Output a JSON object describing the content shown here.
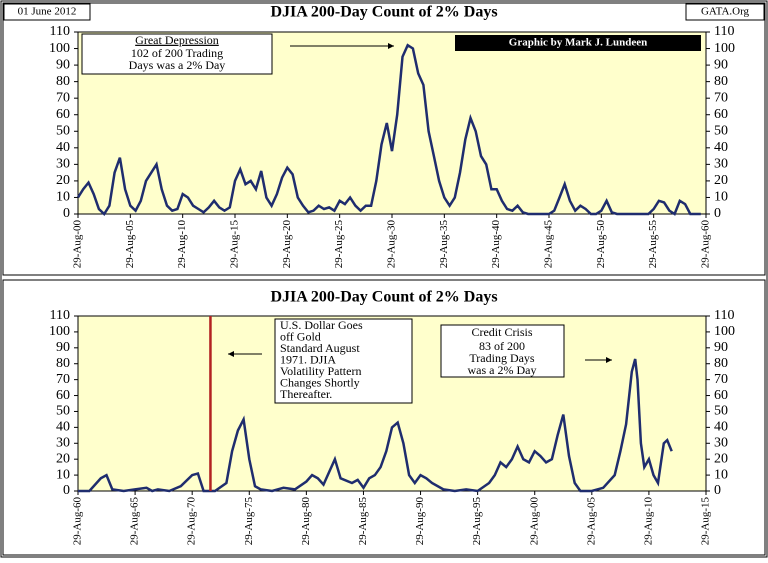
{
  "header": {
    "date": "01 June 2012",
    "site": "GATA.Org"
  },
  "chart_data": [
    {
      "type": "line",
      "title": "DJIA 200-Day Count of 2% Days",
      "color": "#1f2d6e",
      "credit": "Graphic by Mark J. Lundeen",
      "note_heading": "Great Depression",
      "note_lines": [
        "102 of 200 Trading",
        "Days was a 2% Day"
      ],
      "xlim": [
        1900,
        1960
      ],
      "xticks": [
        {
          "value": 1900,
          "label": "29-Aug-00"
        },
        {
          "value": 1905,
          "label": "29-Aug-05"
        },
        {
          "value": 1910,
          "label": "29-Aug-10"
        },
        {
          "value": 1915,
          "label": "29-Aug-15"
        },
        {
          "value": 1920,
          "label": "29-Aug-20"
        },
        {
          "value": 1925,
          "label": "29-Aug-25"
        },
        {
          "value": 1930,
          "label": "29-Aug-30"
        },
        {
          "value": 1935,
          "label": "29-Aug-35"
        },
        {
          "value": 1940,
          "label": "29-Aug-40"
        },
        {
          "value": 1945,
          "label": "29-Aug-45"
        },
        {
          "value": 1950,
          "label": "29-Aug-50"
        },
        {
          "value": 1955,
          "label": "29-Aug-55"
        },
        {
          "value": 1960,
          "label": "29-Aug-60"
        }
      ],
      "ylim": [
        0,
        110
      ],
      "yticks": [
        0,
        10,
        20,
        30,
        40,
        50,
        60,
        70,
        80,
        90,
        100,
        110
      ],
      "x": [
        1900,
        1900.5,
        1901,
        1901.5,
        1902,
        1902.5,
        1903,
        1903.5,
        1904,
        1904.5,
        1905,
        1905.5,
        1906,
        1906.5,
        1907,
        1907.5,
        1908,
        1908.5,
        1909,
        1909.5,
        1910,
        1910.5,
        1911,
        1911.5,
        1912,
        1912.5,
        1913,
        1913.5,
        1914,
        1914.5,
        1915,
        1915.5,
        1916,
        1916.5,
        1917,
        1917.5,
        1918,
        1918.5,
        1919,
        1919.5,
        1920,
        1920.5,
        1921,
        1921.5,
        1922,
        1922.5,
        1923,
        1923.5,
        1924,
        1924.5,
        1925,
        1925.5,
        1926,
        1926.5,
        1927,
        1927.5,
        1928,
        1928.5,
        1929,
        1929.5,
        1930,
        1930.5,
        1931,
        1931.5,
        1932,
        1932.5,
        1933,
        1933.5,
        1934,
        1934.5,
        1935,
        1935.5,
        1936,
        1936.5,
        1937,
        1937.5,
        1938,
        1938.5,
        1939,
        1939.5,
        1940,
        1940.5,
        1941,
        1941.5,
        1942,
        1942.5,
        1943,
        1943.5,
        1944,
        1944.5,
        1945,
        1945.5,
        1946,
        1946.5,
        1947,
        1947.5,
        1948,
        1948.5,
        1949,
        1949.5,
        1950,
        1950.5,
        1951,
        1951.5,
        1952,
        1952.5,
        1953,
        1953.5,
        1954,
        1954.5,
        1955,
        1955.5,
        1956,
        1956.5,
        1957,
        1957.5,
        1958,
        1958.5,
        1959,
        1959.5
      ],
      "values": [
        10,
        15,
        19,
        12,
        3,
        0,
        5,
        25,
        34,
        15,
        5,
        2,
        8,
        20,
        25,
        30,
        15,
        5,
        2,
        3,
        12,
        10,
        5,
        3,
        1,
        4,
        8,
        4,
        2,
        4,
        20,
        27,
        18,
        20,
        15,
        26,
        10,
        5,
        12,
        22,
        28,
        24,
        10,
        5,
        1,
        2,
        5,
        3,
        4,
        2,
        8,
        6,
        10,
        5,
        2,
        5,
        5,
        20,
        42,
        55,
        38,
        60,
        95,
        102,
        100,
        85,
        78,
        50,
        35,
        20,
        10,
        5,
        10,
        25,
        45,
        58,
        50,
        35,
        30,
        15,
        15,
        8,
        3,
        2,
        5,
        1,
        0,
        0,
        0,
        0,
        0,
        2,
        10,
        18,
        8,
        2,
        5,
        3,
        0,
        0,
        2,
        8,
        1,
        0,
        0,
        0,
        0,
        0,
        0,
        0,
        3,
        8,
        7,
        2,
        0,
        8,
        6,
        0,
        0,
        0
      ]
    },
    {
      "type": "line",
      "title": "DJIA 200-Day Count of 2% Days",
      "color": "#1f2d6e",
      "event_x": 1971.6,
      "event_color": "#b22222",
      "dollar_lines": [
        "U.S. Dollar Goes",
        "off Gold",
        "Standard August",
        "1971.  DJIA",
        "Volatility Pattern",
        "Changes Shortly",
        "Thereafter."
      ],
      "crisis_heading": "Credit Crisis",
      "crisis_lines": [
        "83 of 200",
        "Trading Days",
        "was a 2% Day"
      ],
      "xlim": [
        1960,
        2015
      ],
      "xticks": [
        {
          "value": 1960,
          "label": "29-Aug-60"
        },
        {
          "value": 1965,
          "label": "29-Aug-65"
        },
        {
          "value": 1970,
          "label": "29-Aug-70"
        },
        {
          "value": 1975,
          "label": "29-Aug-75"
        },
        {
          "value": 1980,
          "label": "29-Aug-80"
        },
        {
          "value": 1985,
          "label": "29-Aug-85"
        },
        {
          "value": 1990,
          "label": "29-Aug-90"
        },
        {
          "value": 1995,
          "label": "29-Aug-95"
        },
        {
          "value": 2000,
          "label": "29-Aug-00"
        },
        {
          "value": 2005,
          "label": "29-Aug-05"
        },
        {
          "value": 2010,
          "label": "29-Aug-10"
        },
        {
          "value": 2015,
          "label": "29-Aug-15"
        }
      ],
      "ylim": [
        0,
        110
      ],
      "yticks": [
        0,
        10,
        20,
        30,
        40,
        50,
        60,
        70,
        80,
        90,
        100,
        110
      ],
      "x": [
        1960,
        1961,
        1962,
        1962.5,
        1963,
        1964,
        1965,
        1966,
        1966.5,
        1967,
        1968,
        1969,
        1970,
        1970.5,
        1971,
        1971.5,
        1972,
        1973,
        1973.5,
        1974,
        1974.5,
        1975,
        1975.5,
        1976,
        1977,
        1978,
        1979,
        1980,
        1980.5,
        1981,
        1981.5,
        1982,
        1982.5,
        1983,
        1984,
        1984.5,
        1985,
        1985.5,
        1986,
        1986.5,
        1987,
        1987.5,
        1988,
        1988.5,
        1989,
        1989.5,
        1990,
        1990.5,
        1991,
        1992,
        1993,
        1994,
        1995,
        1996,
        1996.5,
        1997,
        1997.5,
        1998,
        1998.5,
        1999,
        1999.5,
        2000,
        2000.5,
        2001,
        2001.5,
        2002,
        2002.5,
        2003,
        2003.5,
        2004,
        2005,
        2006,
        2007,
        2007.5,
        2008,
        2008.5,
        2008.8,
        2009,
        2009.3,
        2009.6,
        2010,
        2010.4,
        2010.8,
        2011,
        2011.3,
        2011.6,
        2012
      ],
      "values": [
        0,
        0,
        8,
        10,
        1,
        0,
        1,
        2,
        0,
        1,
        0,
        3,
        10,
        11,
        0,
        0,
        0,
        5,
        25,
        38,
        45,
        20,
        3,
        1,
        0,
        2,
        1,
        6,
        10,
        8,
        4,
        12,
        20,
        8,
        5,
        7,
        2,
        8,
        10,
        15,
        25,
        40,
        43,
        30,
        10,
        5,
        10,
        8,
        5,
        1,
        0,
        1,
        0,
        5,
        10,
        18,
        15,
        20,
        28,
        20,
        18,
        25,
        22,
        18,
        20,
        35,
        48,
        22,
        5,
        0,
        0,
        2,
        10,
        25,
        42,
        75,
        83,
        70,
        30,
        15,
        20,
        10,
        5,
        15,
        30,
        32,
        25
      ]
    }
  ]
}
